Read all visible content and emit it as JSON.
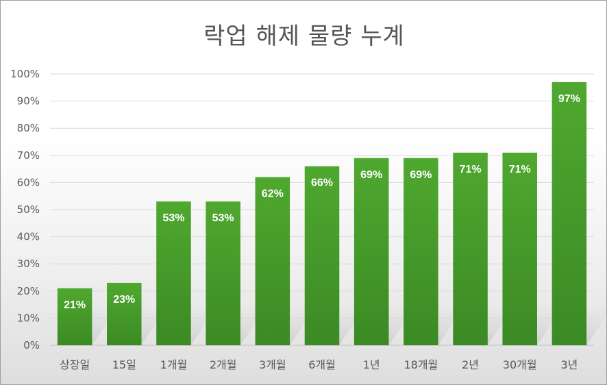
{
  "chart_data": {
    "type": "bar",
    "title": "락업 해제 물량 누계",
    "categories": [
      "상장일",
      "15일",
      "1개월",
      "2개월",
      "3개월",
      "6개월",
      "1년",
      "18개월",
      "2년",
      "30개월",
      "3년"
    ],
    "values": [
      21,
      23,
      53,
      53,
      62,
      66,
      69,
      69,
      71,
      71,
      97
    ],
    "data_labels": [
      "21%",
      "23%",
      "53%",
      "53%",
      "62%",
      "66%",
      "69%",
      "69%",
      "71%",
      "71%",
      "97%"
    ],
    "y_ticks": [
      "0%",
      "10%",
      "20%",
      "30%",
      "40%",
      "50%",
      "60%",
      "70%",
      "80%",
      "90%",
      "100%"
    ],
    "ylim": [
      0,
      100
    ],
    "grid": true,
    "bar_color": "#4aa02c",
    "bar_color_dark": "#3a8a25"
  }
}
